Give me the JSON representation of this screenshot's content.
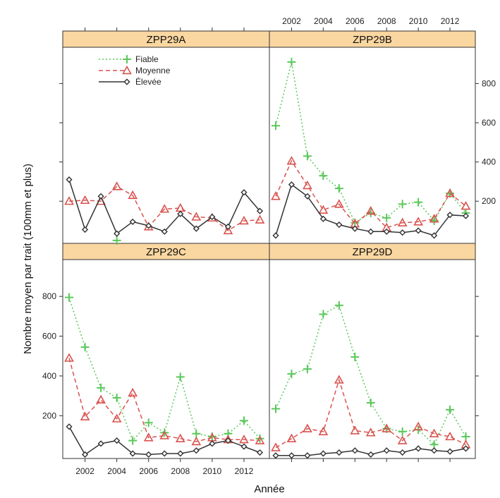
{
  "chart_data": {
    "type": "line",
    "xlabel": "Année",
    "ylabel": "Nombre moyen par trait (100mm et plus)",
    "xlim": [
      2000.6,
      2013.6
    ],
    "ylim": [
      -15,
      985
    ],
    "x_ticks": [
      2002,
      2004,
      2006,
      2008,
      2010,
      2012
    ],
    "y_ticks": [
      200,
      400,
      600,
      800
    ],
    "x_tick_labels": [
      "2002",
      "2004",
      "2006",
      "2008",
      "2010",
      "2012"
    ],
    "y_tick_labels": [
      "200",
      "400",
      "600",
      "800"
    ],
    "x": [
      2001,
      2002,
      2003,
      2004,
      2005,
      2006,
      2007,
      2008,
      2009,
      2010,
      2011,
      2012,
      2013
    ],
    "legend": {
      "position": "top-left of first panel",
      "entries": [
        {
          "label": "Fiable",
          "color": "#5bc85b",
          "marker": "plus",
          "line": "dotted"
        },
        {
          "label": "Moyenne",
          "color": "#d9534f",
          "marker": "triangle",
          "line": "dashed"
        },
        {
          "label": "Élevée",
          "color": "#333333",
          "marker": "diamond",
          "line": "solid"
        }
      ]
    },
    "colors": {
      "Fiable": "#5bc85b",
      "Moyenne": "#d9534f",
      "Élevée": "#333333",
      "strip": "#fad7a0"
    },
    "panels": [
      {
        "name": "ZPP29A",
        "series": [
          {
            "name": "Fiable",
            "values": [
              null,
              null,
              null,
              0,
              null,
              null,
              null,
              null,
              null,
              null,
              null,
              null,
              null
            ]
          },
          {
            "name": "Moyenne",
            "values": [
              200,
              205,
              200,
              275,
              230,
              70,
              160,
              165,
              120,
              115,
              50,
              100,
              105
            ]
          },
          {
            "name": "Élevée",
            "values": [
              310,
              55,
              225,
              35,
              95,
              75,
              45,
              135,
              60,
              120,
              70,
              245,
              150
            ]
          }
        ]
      },
      {
        "name": "ZPP29B",
        "series": [
          {
            "name": "Fiable",
            "values": [
              585,
              910,
              430,
              330,
              265,
              90,
              140,
              115,
              185,
              195,
              100,
              240,
              140
            ]
          },
          {
            "name": "Moyenne",
            "values": [
              225,
              405,
              280,
              155,
              185,
              85,
              150,
              65,
              90,
              95,
              110,
              240,
              175
            ]
          },
          {
            "name": "Élevée",
            "values": [
              25,
              285,
              225,
              110,
              80,
              60,
              45,
              45,
              40,
              50,
              25,
              130,
              125
            ]
          }
        ]
      },
      {
        "name": "ZPP29C",
        "series": [
          {
            "name": "Fiable",
            "values": [
              795,
              545,
              340,
              290,
              75,
              165,
              115,
              395,
              110,
              95,
              110,
              175,
              85
            ]
          },
          {
            "name": "Moyenne",
            "values": [
              490,
              195,
              280,
              185,
              315,
              90,
              100,
              85,
              70,
              90,
              80,
              80,
              75
            ]
          },
          {
            "name": "Élevée",
            "values": [
              145,
              5,
              60,
              75,
              10,
              5,
              10,
              10,
              25,
              60,
              75,
              45,
              15
            ]
          }
        ]
      },
      {
        "name": "ZPP29D",
        "series": [
          {
            "name": "Fiable",
            "values": [
              235,
              410,
              435,
              710,
              755,
              495,
              265,
              135,
              120,
              130,
              55,
              230,
              95
            ]
          },
          {
            "name": "Moyenne",
            "values": [
              40,
              85,
              135,
              120,
              380,
              125,
              115,
              135,
              75,
              145,
              110,
              95,
              55
            ]
          },
          {
            "name": "Élevée",
            "values": [
              0,
              0,
              0,
              10,
              15,
              25,
              5,
              25,
              15,
              35,
              25,
              20,
              35
            ]
          }
        ]
      }
    ]
  }
}
